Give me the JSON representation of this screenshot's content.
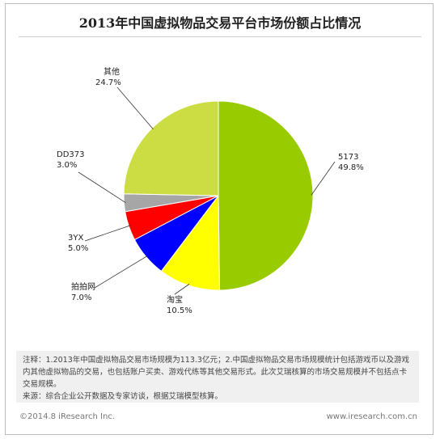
{
  "chart_data": {
    "type": "pie",
    "title": "2013年中国虚拟物品交易平台市场份额占比情况",
    "slices": [
      {
        "name": "5173",
        "value": 49.8,
        "label": "49.8%",
        "color": "#99cc00"
      },
      {
        "name": "淘宝",
        "value": 10.5,
        "label": "10.5%",
        "color": "#ffff00"
      },
      {
        "name": "拍拍网",
        "value": 7.0,
        "label": "7.0%",
        "color": "#0000ff"
      },
      {
        "name": "3YX",
        "value": 5.0,
        "label": "5.0%",
        "color": "#ff0000"
      },
      {
        "name": "DD373",
        "value": 3.0,
        "label": "3.0%",
        "color": "#a6a6a6"
      },
      {
        "name": "其他",
        "value": 24.7,
        "label": "24.7%",
        "color": "#ccdd44"
      }
    ]
  },
  "notes": {
    "line1": "注释：1.2013年中国虚拟物品交易市场规模为113.3亿元；2.中国虚拟物品交易市场规模统计包括游戏币以及游戏内其他虚拟物品的交易，也包括账户买卖、游戏代练等其他交易形式。此次艾瑞核算的市场交易规模并不包括点卡交易规模。",
    "line2": "来源：综合企业公开数据及专家访谈，根据艾瑞模型核算。"
  },
  "footer": {
    "copyright": "©2014.8 iResearch Inc.",
    "website": "www.iresearch.com.cn"
  }
}
